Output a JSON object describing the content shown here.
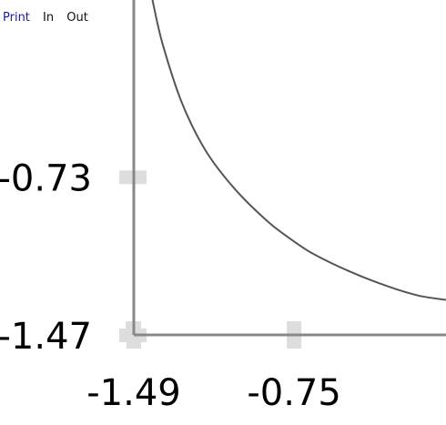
{
  "toolbar": {
    "print_label": "Print",
    "zoom_in_label": "In",
    "zoom_out_label": "Out"
  },
  "colors": {
    "axis": "#888888",
    "curve": "#555555",
    "tick_mark": "#dddddd"
  },
  "chart_data": {
    "type": "line",
    "x_ticks": [
      {
        "value": -1.49,
        "label": "-1.49"
      },
      {
        "value": -0.75,
        "label": "-0.75"
      }
    ],
    "y_ticks": [
      {
        "value": -0.73,
        "label": "-0.73"
      },
      {
        "value": -1.47,
        "label": "-1.47"
      }
    ],
    "xlim": [
      -1.49,
      -0.0485
    ],
    "ylim": [
      -1.47,
      0.0975
    ],
    "grid": false,
    "series": [
      {
        "x": [
          -1.404,
          -1.357,
          -1.27,
          -1.161,
          -1.029,
          -0.875,
          -0.759,
          -0.657,
          -0.489,
          -0.316,
          -0.176,
          -0.049
        ],
        "y": [
          0.098,
          -0.108,
          -0.378,
          -0.603,
          -0.781,
          -0.936,
          -1.026,
          -1.093,
          -1.175,
          -1.243,
          -1.286,
          -1.306
        ]
      }
    ]
  }
}
